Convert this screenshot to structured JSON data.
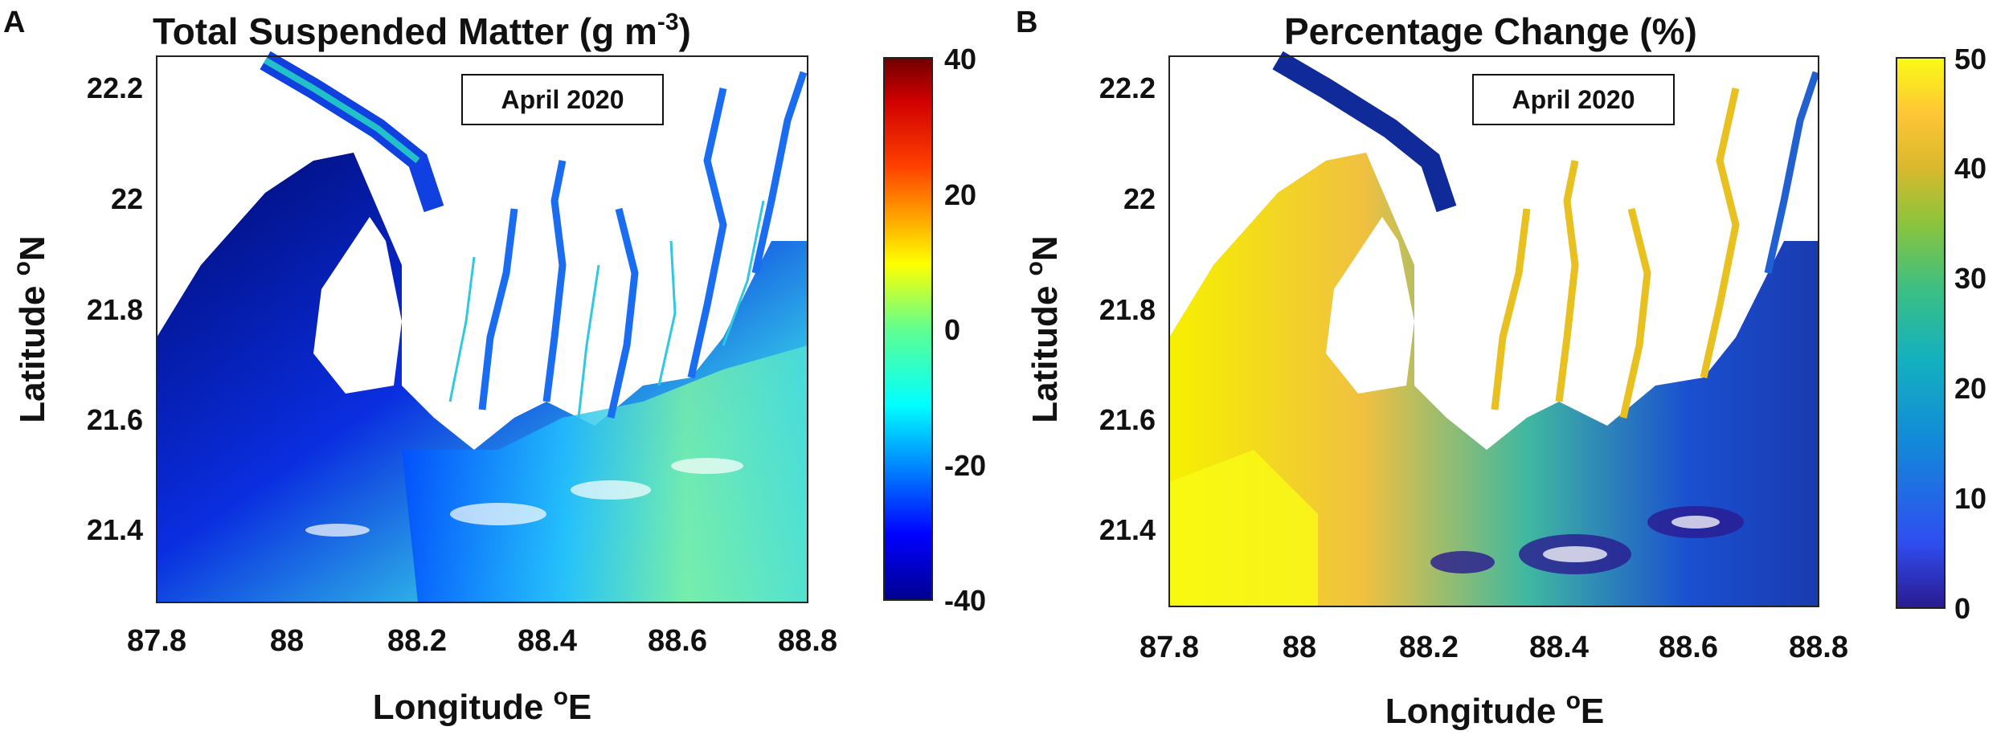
{
  "panels": [
    {
      "letter": "A",
      "title": "Total Suspended Matter (g m",
      "title_sup": "-3",
      "title_tail": ")",
      "date_label": "April 2020",
      "xlabel": "Longitude ",
      "xlabel_sup": "o",
      "xlabel_tail": "E",
      "ylabel": "Latitude ",
      "ylabel_sup": "o",
      "ylabel_tail": "N",
      "xticks": [
        "87.8",
        "88",
        "88.2",
        "88.4",
        "88.6",
        "88.8"
      ],
      "yticks": [
        "22.2",
        "22",
        "21.8",
        "21.6",
        "21.4"
      ],
      "colorbar": {
        "ticks": [
          "40",
          "20",
          "0",
          "-20",
          "-40"
        ],
        "min": -40,
        "max": 40,
        "colors": [
          "#00008f",
          "#0000ff",
          "#0080ff",
          "#00ffff",
          "#80ff80",
          "#ffff00",
          "#ff8000",
          "#ff0000",
          "#800000"
        ]
      }
    },
    {
      "letter": "B",
      "title": "Percentage Change (%)",
      "title_sup": "",
      "title_tail": "",
      "date_label": "April 2020",
      "xlabel": "Longitude ",
      "xlabel_sup": "o",
      "xlabel_tail": "E",
      "ylabel": "Latitude ",
      "ylabel_sup": "o",
      "ylabel_tail": "N",
      "xticks": [
        "87.8",
        "88",
        "88.2",
        "88.4",
        "88.6",
        "88.8"
      ],
      "yticks": [
        "22.2",
        "22",
        "21.8",
        "21.6",
        "21.4"
      ],
      "colorbar": {
        "ticks": [
          "50",
          "40",
          "30",
          "20",
          "10",
          "0"
        ],
        "min": 0,
        "max": 50,
        "colors": [
          "#3e26a8",
          "#2f4ef0",
          "#1389d9",
          "#13b0c0",
          "#3cbf83",
          "#8cc43c",
          "#d8b92c",
          "#fec636",
          "#f9fb15"
        ]
      }
    }
  ]
}
